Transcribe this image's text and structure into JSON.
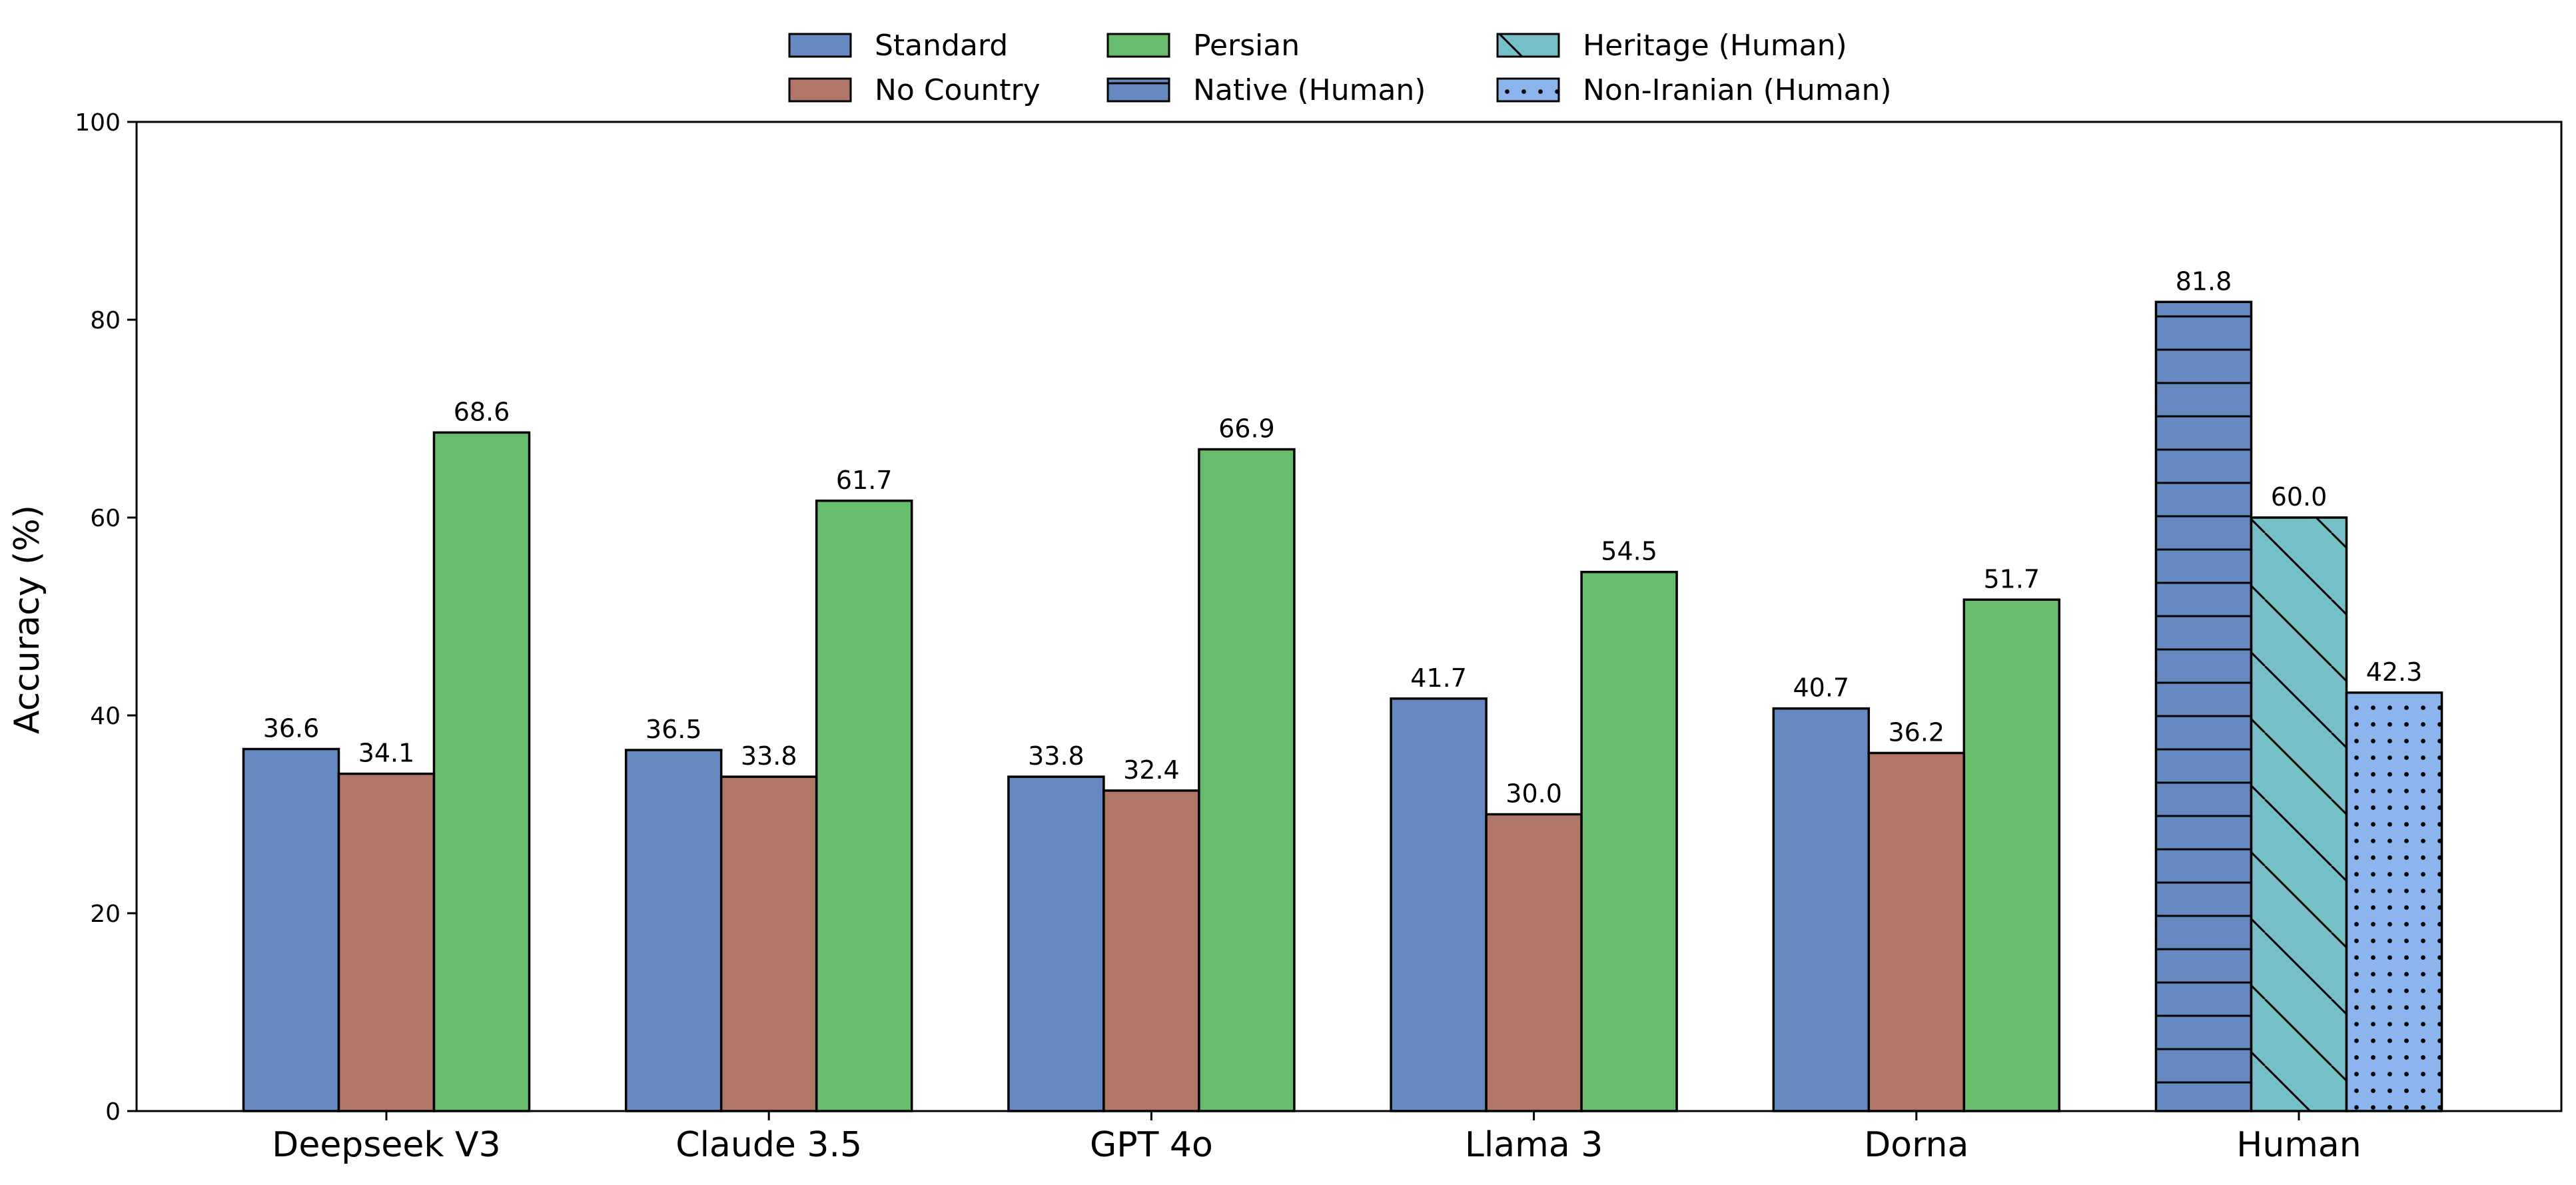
{
  "chart_data": {
    "type": "bar",
    "title": "",
    "xlabel": "",
    "ylabel": "Accuracy (%)",
    "ylim": [
      0,
      100
    ],
    "yticks": [
      0,
      20,
      40,
      60,
      80,
      100
    ],
    "grid": false,
    "legend_position": "top-center",
    "categories": [
      "Deepseek V3",
      "Claude 3.5",
      "GPT 4o",
      "Llama 3",
      "Dorna",
      "Human"
    ],
    "groups": [
      {
        "category": "Deepseek V3",
        "bars": [
          {
            "series": "Standard",
            "value": 36.6,
            "label": "36.6"
          },
          {
            "series": "No Country",
            "value": 34.1,
            "label": "34.1"
          },
          {
            "series": "Persian",
            "value": 68.6,
            "label": "68.6"
          }
        ]
      },
      {
        "category": "Claude 3.5",
        "bars": [
          {
            "series": "Standard",
            "value": 36.5,
            "label": "36.5"
          },
          {
            "series": "No Country",
            "value": 33.8,
            "label": "33.8"
          },
          {
            "series": "Persian",
            "value": 61.7,
            "label": "61.7"
          }
        ]
      },
      {
        "category": "GPT 4o",
        "bars": [
          {
            "series": "Standard",
            "value": 33.8,
            "label": "33.8"
          },
          {
            "series": "No Country",
            "value": 32.4,
            "label": "32.4"
          },
          {
            "series": "Persian",
            "value": 66.9,
            "label": "66.9"
          }
        ]
      },
      {
        "category": "Llama 3",
        "bars": [
          {
            "series": "Standard",
            "value": 41.7,
            "label": "41.7"
          },
          {
            "series": "No Country",
            "value": 30.0,
            "label": "30.0"
          },
          {
            "series": "Persian",
            "value": 54.5,
            "label": "54.5"
          }
        ]
      },
      {
        "category": "Dorna",
        "bars": [
          {
            "series": "Standard",
            "value": 40.7,
            "label": "40.7"
          },
          {
            "series": "No Country",
            "value": 36.2,
            "label": "36.2"
          },
          {
            "series": "Persian",
            "value": 51.7,
            "label": "51.7"
          }
        ]
      },
      {
        "category": "Human",
        "bars": [
          {
            "series": "Native (Human)",
            "value": 81.8,
            "label": "81.8"
          },
          {
            "series": "Heritage (Human)",
            "value": 60.0,
            "label": "60.0"
          },
          {
            "series": "Non-Iranian (Human)",
            "value": 42.3,
            "label": "42.3"
          }
        ]
      }
    ],
    "series": [
      {
        "name": "Standard",
        "color": "#6689c1",
        "hatch": "none"
      },
      {
        "name": "No Country",
        "color": "#b07667",
        "hatch": "none"
      },
      {
        "name": "Persian",
        "color": "#67bc6d",
        "hatch": "none"
      },
      {
        "name": "Native (Human)",
        "color": "#6689c1",
        "hatch": "horizontal"
      },
      {
        "name": "Heritage (Human)",
        "color": "#77bfc6",
        "hatch": "diagonal"
      },
      {
        "name": "Non-Iranian (Human)",
        "color": "#8cb5ee",
        "hatch": "dots"
      }
    ]
  }
}
